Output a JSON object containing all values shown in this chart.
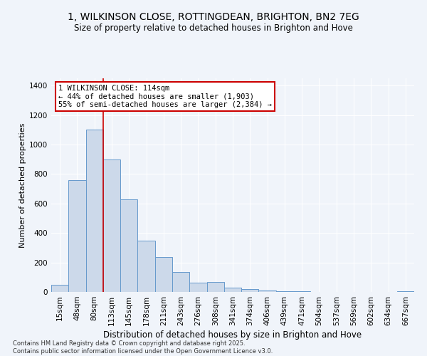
{
  "title": "1, WILKINSON CLOSE, ROTTINGDEAN, BRIGHTON, BN2 7EG",
  "subtitle": "Size of property relative to detached houses in Brighton and Hove",
  "xlabel": "Distribution of detached houses by size in Brighton and Hove",
  "ylabel": "Number of detached properties",
  "footnote1": "Contains HM Land Registry data © Crown copyright and database right 2025.",
  "footnote2": "Contains public sector information licensed under the Open Government Licence v3.0.",
  "categories": [
    "15sqm",
    "48sqm",
    "80sqm",
    "113sqm",
    "145sqm",
    "178sqm",
    "211sqm",
    "243sqm",
    "276sqm",
    "308sqm",
    "341sqm",
    "374sqm",
    "406sqm",
    "439sqm",
    "471sqm",
    "504sqm",
    "537sqm",
    "569sqm",
    "602sqm",
    "634sqm",
    "667sqm"
  ],
  "values": [
    50,
    760,
    1100,
    900,
    630,
    350,
    235,
    135,
    65,
    70,
    30,
    20,
    10,
    5,
    3,
    2,
    1,
    0,
    0,
    0,
    5
  ],
  "bar_color": "#ccd9ea",
  "bar_edge_color": "#6699cc",
  "annotation_line1": "1 WILKINSON CLOSE: 114sqm",
  "annotation_line2": "← 44% of detached houses are smaller (1,903)",
  "annotation_line3": "55% of semi-detached houses are larger (2,384) →",
  "annotation_box_color": "white",
  "annotation_box_edge_color": "#cc0000",
  "vline_x": 3,
  "vline_color": "#cc0000",
  "ylim": [
    0,
    1450
  ],
  "yticks": [
    0,
    200,
    400,
    600,
    800,
    1000,
    1200,
    1400
  ],
  "background_color": "#f0f4fa",
  "plot_bg_color": "#f0f4fa",
  "title_fontsize": 10,
  "subtitle_fontsize": 8.5,
  "xlabel_fontsize": 8.5,
  "ylabel_fontsize": 8,
  "tick_fontsize": 7.5,
  "annotation_fontsize": 7.5,
  "footnote_fontsize": 6
}
